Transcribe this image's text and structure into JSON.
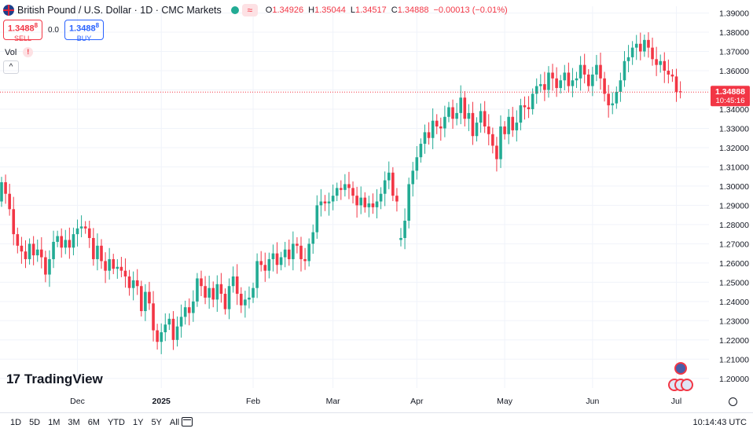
{
  "header": {
    "title": "British Pound / U.S. Dollar · 1D · CMC Markets",
    "wave_icon": "≈",
    "ohlc": [
      {
        "k": "O",
        "v": "1.34926"
      },
      {
        "k": "H",
        "v": "1.35044"
      },
      {
        "k": "L",
        "v": "1.34517"
      },
      {
        "k": "C",
        "v": "1.34888"
      },
      {
        "k": "",
        "v": "−0.00013 (−0.01%)"
      }
    ]
  },
  "trade": {
    "sell_price": "1.3488",
    "sell_sup": "8",
    "sell_label": "SELL",
    "spread": "0.0",
    "buy_price": "1.3488",
    "buy_sup": "8",
    "buy_label": "BUY"
  },
  "indicator": {
    "label": "Vol",
    "warning": "!",
    "collapse": "^"
  },
  "branding": {
    "logo_text": "TradingView",
    "logo_mark": "17"
  },
  "bottom": {
    "ranges": [
      "1D",
      "5D",
      "1M",
      "3M",
      "6M",
      "YTD",
      "1Y",
      "5Y",
      "All"
    ],
    "clock": "10:14:43 UTC"
  },
  "colors": {
    "up": "#22ab94",
    "down": "#f23645",
    "grid": "#f0f3fa",
    "text": "#131722",
    "price_line": "#f23645"
  },
  "chart_data": {
    "type": "candlestick",
    "title": "British Pound / U.S. Dollar · 1D · CMC Markets",
    "ylim": [
      1.195,
      1.3935
    ],
    "y_ticks": [
      "1.39000",
      "1.38000",
      "1.37000",
      "1.36000",
      "1.35000",
      "1.34000",
      "1.33000",
      "1.32000",
      "1.31000",
      "1.30000",
      "1.29000",
      "1.28000",
      "1.27000",
      "1.26000",
      "1.25000",
      "1.24000",
      "1.23000",
      "1.22000",
      "1.21000",
      "1.20000"
    ],
    "x_ticks": [
      {
        "label": "Dec",
        "index": 19,
        "bold": false
      },
      {
        "label": "2025",
        "index": 40,
        "bold": true
      },
      {
        "label": "Feb",
        "index": 63,
        "bold": false
      },
      {
        "label": "Mar",
        "index": 83,
        "bold": false
      },
      {
        "label": "Apr",
        "index": 104,
        "bold": false
      },
      {
        "label": "May",
        "index": 126,
        "bold": false
      },
      {
        "label": "Jun",
        "index": 148,
        "bold": false
      },
      {
        "label": "Jul",
        "index": 169,
        "bold": false
      }
    ],
    "last_price": {
      "value": 1.34888,
      "label": "1.34888",
      "countdown": "10:45:16"
    },
    "closes": [
      1.302,
      1.296,
      1.288,
      1.275,
      1.269,
      1.266,
      1.262,
      1.27,
      1.264,
      1.267,
      1.263,
      1.254,
      1.262,
      1.271,
      1.274,
      1.268,
      1.272,
      1.268,
      1.275,
      1.278,
      1.279,
      1.278,
      1.273,
      1.262,
      1.269,
      1.261,
      1.256,
      1.262,
      1.257,
      1.258,
      1.256,
      1.253,
      1.247,
      1.251,
      1.248,
      1.235,
      1.245,
      1.239,
      1.225,
      1.219,
      1.224,
      1.228,
      1.231,
      1.22,
      1.227,
      1.232,
      1.237,
      1.234,
      1.24,
      1.252,
      1.248,
      1.242,
      1.247,
      1.241,
      1.249,
      1.244,
      1.236,
      1.248,
      1.253,
      1.244,
      1.238,
      1.241,
      1.242,
      1.247,
      1.261,
      1.259,
      1.256,
      1.262,
      1.265,
      1.259,
      1.263,
      1.267,
      1.262,
      1.27,
      1.269,
      1.262,
      1.261,
      1.27,
      1.276,
      1.29,
      1.292,
      1.291,
      1.292,
      1.295,
      1.299,
      1.298,
      1.301,
      1.299,
      1.295,
      1.29,
      1.294,
      1.289,
      1.291,
      1.289,
      1.292,
      1.296,
      1.303,
      1.307,
      1.295,
      1.292,
      1.273,
      1.282,
      1.301,
      1.308,
      1.315,
      1.322,
      1.328,
      1.325,
      1.334,
      1.331,
      1.33,
      1.336,
      1.341,
      1.335,
      1.338,
      1.346,
      1.335,
      1.338,
      1.326,
      1.333,
      1.339,
      1.331,
      1.327,
      1.321,
      1.314,
      1.331,
      1.327,
      1.336,
      1.329,
      1.333,
      1.342,
      1.341,
      1.34,
      1.348,
      1.352,
      1.353,
      1.35,
      1.359,
      1.356,
      1.351,
      1.355,
      1.359,
      1.352,
      1.355,
      1.356,
      1.363,
      1.358,
      1.352,
      1.358,
      1.363,
      1.356,
      1.348,
      1.342,
      1.343,
      1.349,
      1.355,
      1.365,
      1.367,
      1.372,
      1.374,
      1.37,
      1.376,
      1.372,
      1.366,
      1.363,
      1.365,
      1.36,
      1.358,
      1.357,
      1.349,
      1.349
    ],
    "opens": [
      1.292,
      1.302,
      1.296,
      1.288,
      1.275,
      1.269,
      1.266,
      1.262,
      1.27,
      1.264,
      1.267,
      1.263,
      1.254,
      1.262,
      1.271,
      1.274,
      1.268,
      1.272,
      1.268,
      1.275,
      1.278,
      1.279,
      1.278,
      1.273,
      1.262,
      1.269,
      1.261,
      1.256,
      1.262,
      1.257,
      1.258,
      1.256,
      1.253,
      1.247,
      1.251,
      1.248,
      1.235,
      1.245,
      1.239,
      1.225,
      1.219,
      1.224,
      1.228,
      1.231,
      1.22,
      1.227,
      1.232,
      1.237,
      1.234,
      1.24,
      1.252,
      1.248,
      1.242,
      1.247,
      1.241,
      1.249,
      1.244,
      1.236,
      1.248,
      1.253,
      1.244,
      1.238,
      1.241,
      1.242,
      1.247,
      1.261,
      1.259,
      1.256,
      1.262,
      1.265,
      1.259,
      1.263,
      1.267,
      1.262,
      1.27,
      1.269,
      1.262,
      1.261,
      1.27,
      1.276,
      1.29,
      1.292,
      1.291,
      1.292,
      1.295,
      1.299,
      1.298,
      1.301,
      1.299,
      1.295,
      1.29,
      1.294,
      1.289,
      1.291,
      1.289,
      1.292,
      1.296,
      1.303,
      1.307,
      1.295,
      1.272,
      1.273,
      1.282,
      1.301,
      1.308,
      1.315,
      1.322,
      1.328,
      1.325,
      1.334,
      1.331,
      1.33,
      1.336,
      1.341,
      1.335,
      1.338,
      1.346,
      1.335,
      1.338,
      1.326,
      1.333,
      1.339,
      1.331,
      1.327,
      1.321,
      1.314,
      1.331,
      1.327,
      1.336,
      1.329,
      1.333,
      1.342,
      1.341,
      1.34,
      1.348,
      1.352,
      1.353,
      1.35,
      1.359,
      1.356,
      1.351,
      1.355,
      1.359,
      1.352,
      1.355,
      1.356,
      1.363,
      1.358,
      1.352,
      1.358,
      1.363,
      1.356,
      1.348,
      1.342,
      1.343,
      1.349,
      1.355,
      1.365,
      1.367,
      1.372,
      1.374,
      1.37,
      1.376,
      1.372,
      1.366,
      1.363,
      1.365,
      1.36,
      1.358,
      1.357,
      1.3493
    ]
  }
}
